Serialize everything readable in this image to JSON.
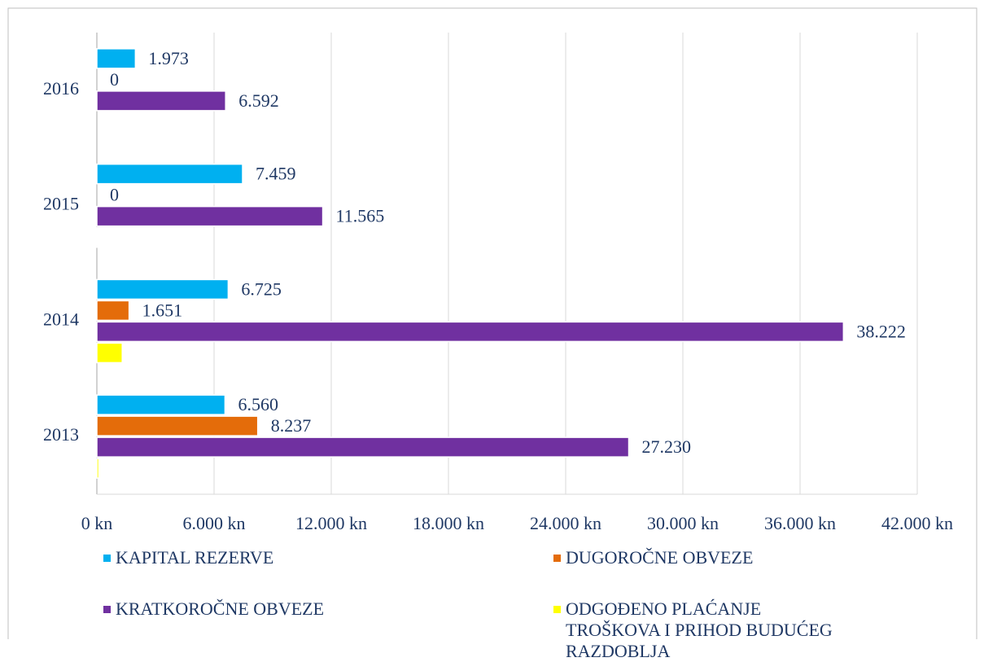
{
  "chart_data": {
    "type": "bar",
    "orientation": "horizontal",
    "categories": [
      "2013",
      "2014",
      "2015",
      "2016"
    ],
    "series": [
      {
        "name": "KAPITAL REZERVE",
        "color": "#00b0f0",
        "values": [
          6560,
          6725,
          7459,
          1973
        ],
        "value_labels": [
          "6.560",
          "6.725",
          "7.459",
          "1.973"
        ]
      },
      {
        "name": "DUGOROČNE OBVEZE",
        "color": "#e46c0a",
        "values": [
          8237,
          1651,
          0,
          0
        ],
        "value_labels": [
          "8.237",
          "1.651",
          "0",
          "0"
        ]
      },
      {
        "name": "KRATKOROČNE OBVEZE",
        "color": "#7030a0",
        "values": [
          27230,
          38222,
          11565,
          6592
        ],
        "value_labels": [
          "27.230",
          "38.222",
          "11.565",
          "6.592"
        ]
      },
      {
        "name": "ODGOĐENO PLAĆANJE TROŠKOVA I PRIHOD BUDUĆEG RAZDOBLJA",
        "color": "#ffff00",
        "values": [
          100,
          1300,
          50,
          0
        ]
      }
    ],
    "xlim": [
      0,
      42000
    ],
    "xticks": [
      {
        "value": 0,
        "label": "0 kn"
      },
      {
        "value": 6000,
        "label": "6.000 kn"
      },
      {
        "value": 12000,
        "label": "12.000 kn"
      },
      {
        "value": 18000,
        "label": "18.000 kn"
      },
      {
        "value": 24000,
        "label": "24.000 kn"
      },
      {
        "value": 30000,
        "label": "30.000 kn"
      },
      {
        "value": 36000,
        "label": "36.000 kn"
      },
      {
        "value": 42000,
        "label": "42.000 kn"
      }
    ],
    "grid": true
  }
}
